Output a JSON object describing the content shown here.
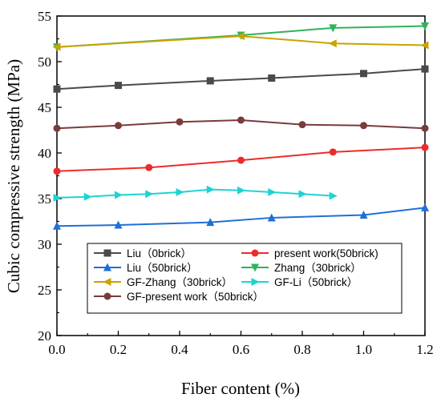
{
  "chart_data": {
    "type": "line",
    "xlabel": "Fiber content (%)",
    "ylabel": "Cubic compressive strength (MPa)",
    "xlim": [
      0,
      1.2
    ],
    "ylim": [
      20,
      55
    ],
    "xticks": [
      "0.0",
      "0.2",
      "0.4",
      "0.6",
      "0.8",
      "1.0",
      "1.2"
    ],
    "yticks": [
      "20",
      "25",
      "30",
      "35",
      "40",
      "45",
      "50",
      "55"
    ],
    "grid": false,
    "legend_position": "bottom",
    "series": [
      {
        "name": "Liu（0brick）",
        "color": "#4a4a4a",
        "marker": "square",
        "x": [
          0,
          0.2,
          0.5,
          0.7,
          1.0,
          1.2
        ],
        "y": [
          47.0,
          47.4,
          47.9,
          48.2,
          48.7,
          49.2
        ]
      },
      {
        "name": "present work(50brick)",
        "color": "#ee2b2b",
        "marker": "circle",
        "x": [
          0,
          0.3,
          0.6,
          0.9,
          1.2
        ],
        "y": [
          38.0,
          38.4,
          39.2,
          40.1,
          40.6
        ]
      },
      {
        "name": "Liu（50brick）",
        "color": "#1f6fd6",
        "marker": "triangle-up",
        "x": [
          0,
          0.2,
          0.5,
          0.7,
          1.0,
          1.2
        ],
        "y": [
          32.0,
          32.1,
          32.4,
          32.9,
          33.2,
          34.0
        ]
      },
      {
        "name": "Zhang（30brick）",
        "color": "#2fb35a",
        "marker": "triangle-down",
        "x": [
          0,
          0.6,
          0.9,
          1.2
        ],
        "y": [
          51.6,
          52.9,
          53.7,
          53.9
        ]
      },
      {
        "name": "GF-Zhang（30brick）",
        "color": "#c9a400",
        "marker": "triangle-left",
        "x": [
          0,
          0.6,
          0.9,
          1.2
        ],
        "y": [
          51.6,
          52.8,
          52.0,
          51.8
        ]
      },
      {
        "name": "GF-Li（50brick）",
        "color": "#1fd3d3",
        "marker": "triangle-right",
        "x": [
          0,
          0.1,
          0.2,
          0.3,
          0.4,
          0.5,
          0.6,
          0.7,
          0.8,
          0.9
        ],
        "y": [
          35.1,
          35.2,
          35.4,
          35.5,
          35.7,
          36.0,
          35.9,
          35.7,
          35.5,
          35.3
        ]
      },
      {
        "name": "GF-present work（50brick）",
        "color": "#7a3b3b",
        "marker": "circle",
        "x": [
          0,
          0.2,
          0.4,
          0.6,
          0.8,
          1.0,
          1.2
        ],
        "y": [
          42.7,
          43.0,
          43.4,
          43.6,
          43.1,
          43.0,
          42.7
        ]
      }
    ]
  }
}
